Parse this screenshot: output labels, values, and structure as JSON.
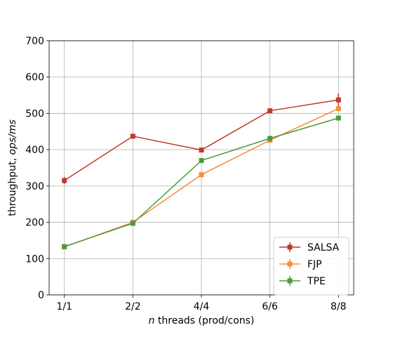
{
  "chart_data": {
    "type": "line",
    "categories": [
      "1/1",
      "2/2",
      "4/4",
      "6/6",
      "8/8"
    ],
    "xlabel_italic": "n",
    "xlabel_rest": " threads (prod/cons)",
    "ylabel_prefix": "throughput, ",
    "ylabel_italic": "ops/ms",
    "ylim": [
      0,
      700
    ],
    "yticks": [
      0,
      100,
      200,
      300,
      400,
      500,
      600,
      700
    ],
    "grid": true,
    "legend_position": "bottom-right",
    "series": [
      {
        "name": "SALSA",
        "color": "#c0392b",
        "values": [
          315,
          437,
          399,
          507,
          537
        ],
        "errors": [
          10,
          5,
          5,
          5,
          18
        ]
      },
      {
        "name": "FJP",
        "color": "#f58d3b",
        "values": [
          132,
          200,
          331,
          426,
          513
        ],
        "errors": [
          4,
          4,
          4,
          5,
          8
        ]
      },
      {
        "name": "TPE",
        "color": "#4e9a3a",
        "values": [
          133,
          197,
          370,
          431,
          487
        ],
        "errors": [
          4,
          4,
          4,
          5,
          6
        ]
      }
    ]
  }
}
